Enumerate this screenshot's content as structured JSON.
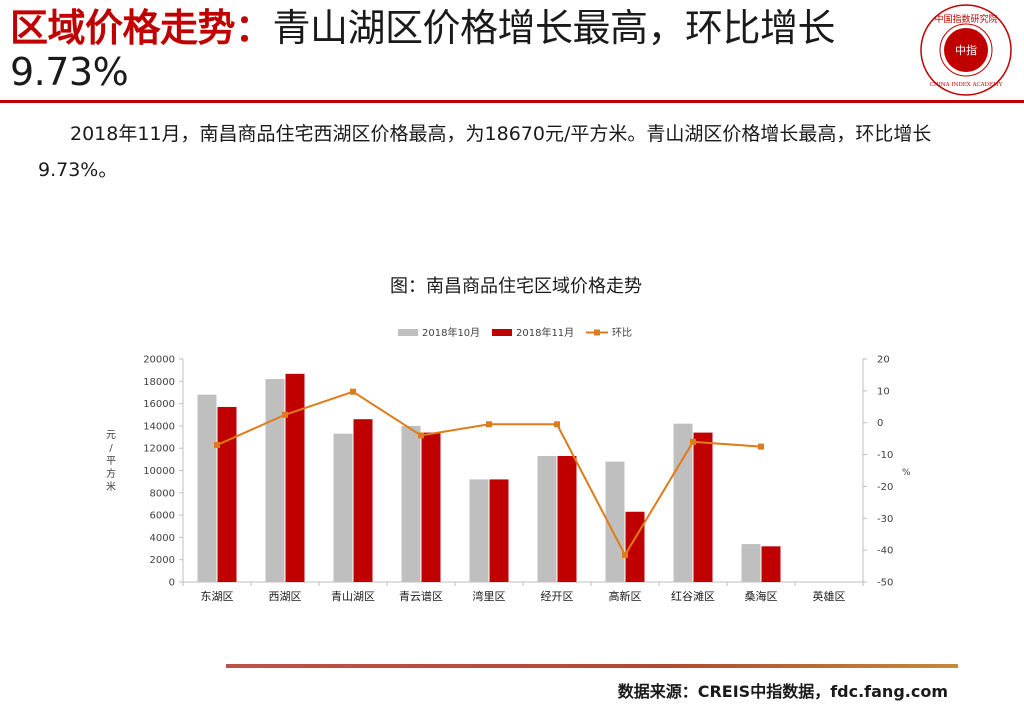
{
  "header": {
    "title_highlight": "区域价格走势：",
    "title_rest": "青山湖区价格增长最高，环比增长9.73%"
  },
  "logo": {
    "center_text": "中指",
    "ring_text": "中国指数研究院",
    "english": "CHINA INDEX ACADEMY"
  },
  "body": {
    "paragraph": "2018年11月，南昌商品住宅西湖区价格最高，为18670元/平方米。青山湖区价格增长最高，环比增长9.73%。"
  },
  "footer": {
    "source": "数据来源：CREIS中指数据，fdc.fang.com"
  },
  "colors": {
    "accent": "#c00000",
    "oct": "#bfbfbf",
    "nov": "#c00000",
    "mom": "#e07b1a"
  },
  "chart_data": {
    "type": "bar",
    "title": "图：南昌商品住宅区域价格走势",
    "categories": [
      "东湖区",
      "西湖区",
      "青山湖区",
      "青云谱区",
      "湾里区",
      "经开区",
      "高新区",
      "红谷滩区",
      "桑海区",
      "英雄区"
    ],
    "series": [
      {
        "name": "2018年10月",
        "type": "bar",
        "axis": "left",
        "values": [
          16800,
          18200,
          13300,
          14000,
          9200,
          11300,
          10800,
          14200,
          3400,
          null
        ]
      },
      {
        "name": "2018年11月",
        "type": "bar",
        "axis": "left",
        "values": [
          15700,
          18670,
          14600,
          13400,
          9200,
          11300,
          6300,
          13400,
          3200,
          null
        ]
      },
      {
        "name": "环比",
        "type": "line",
        "axis": "right",
        "values": [
          -7,
          2.5,
          9.73,
          -4,
          -0.5,
          -0.5,
          -41.5,
          -6,
          -7.5,
          null
        ]
      }
    ],
    "ylabel": "元/平方米",
    "ylim": [
      0,
      20000
    ],
    "yticks": [
      0,
      2000,
      4000,
      6000,
      8000,
      10000,
      12000,
      14000,
      16000,
      18000,
      20000
    ],
    "y2label": "%",
    "y2lim": [
      -50,
      20
    ],
    "y2ticks": [
      -50,
      -40,
      -30,
      -20,
      -10,
      0,
      10,
      20
    ],
    "grid": false,
    "legend": "top-center"
  }
}
